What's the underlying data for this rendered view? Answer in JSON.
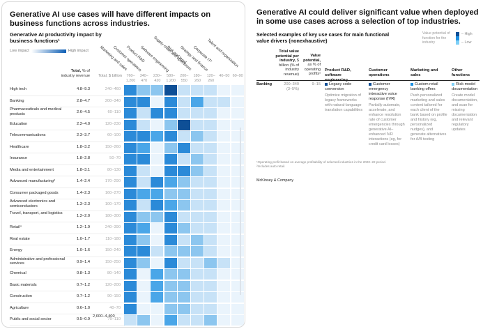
{
  "left": {
    "title": "Generative AI use cases will have different impacts on business functions across industries.",
    "subtitle": "Generative AI productivity impact by business functions¹",
    "legend": {
      "low": "Low impact",
      "high": "High impact",
      "low_color": "#ffffff",
      "high_color": "#0e5fb5"
    },
    "header": {
      "total_pct": "Total, % of industry revenue",
      "total_pct_bold": "Total,",
      "total_pct_rest": "% of industry revenue",
      "total_bn": "Total, $ billion"
    },
    "grand_total": "2,600–4,400"
  },
  "chart_data": {
    "type": "heatmap",
    "title": "Generative AI productivity impact by business functions¹",
    "xlabel": "Business function",
    "ylabel": "Industry",
    "scale": "0 = low impact … 5 = high impact (color intensity)",
    "legend": "top-left",
    "columns": [
      {
        "name": "Marketing and sales",
        "range": "760–1,200"
      },
      {
        "name": "Customer operations",
        "range": "340–470"
      },
      {
        "name": "Product R&D",
        "range": "230–420"
      },
      {
        "name": "Software engineering",
        "range": "580–1,200"
      },
      {
        "name": "Supply chain and operations",
        "range": "200–550"
      },
      {
        "name": "Risk and legal",
        "range": "180–260"
      },
      {
        "name": "Strategy and finance",
        "range": "120–260"
      },
      {
        "name": "Corporate IT²",
        "range": "40–50"
      },
      {
        "name": "Talent and organization",
        "range": "60–90"
      }
    ],
    "rows": [
      {
        "industry": "High tech",
        "pct": "4.8–9.3",
        "bn": "240–460",
        "values": [
          4,
          2,
          2,
          5,
          1,
          1,
          1,
          0,
          0
        ]
      },
      {
        "industry": "Banking",
        "pct": "2.8–4.7",
        "bn": "200–340",
        "values": [
          4,
          4,
          0,
          4,
          1,
          3,
          1,
          1,
          0
        ]
      },
      {
        "industry": "Pharmaceuticals and medical products",
        "pct": "2.6–4.5",
        "bn": "60–110",
        "values": [
          4,
          1,
          4,
          4,
          1,
          1,
          1,
          0,
          0
        ]
      },
      {
        "industry": "Education",
        "pct": "2.2–4.0",
        "bn": "120–230",
        "values": [
          4,
          1,
          0,
          2,
          5,
          1,
          1,
          0,
          0
        ]
      },
      {
        "industry": "Telecommunications",
        "pct": "2.3–3.7",
        "bn": "60–100",
        "values": [
          4,
          4,
          3,
          4,
          1,
          2,
          1,
          0,
          0
        ]
      },
      {
        "industry": "Healthcare",
        "pct": "1.8–3.2",
        "bn": "150–260",
        "values": [
          4,
          3,
          0,
          2,
          4,
          1,
          1,
          0,
          0
        ]
      },
      {
        "industry": "Insurance",
        "pct": "1.8–2.8",
        "bn": "50–70",
        "values": [
          4,
          4,
          0,
          4,
          1,
          2,
          1,
          0,
          0
        ]
      },
      {
        "industry": "Media and entertainment",
        "pct": "1.8–3.1",
        "bn": "80–130",
        "values": [
          4,
          1,
          0,
          4,
          4,
          2,
          1,
          0,
          0
        ]
      },
      {
        "industry": "Advanced manufacturing³",
        "pct": "1.4–2.4",
        "bn": "170–290",
        "values": [
          4,
          1,
          4,
          3,
          2,
          1,
          1,
          0,
          0
        ]
      },
      {
        "industry": "Consumer packaged goods",
        "pct": "1.4–2.3",
        "bn": "160–270",
        "values": [
          4,
          3,
          3,
          2,
          2,
          1,
          1,
          0,
          0
        ]
      },
      {
        "industry": "Advanced electronics and semiconductors",
        "pct": "1.3–2.3",
        "bn": "100–170",
        "values": [
          4,
          1,
          4,
          3,
          2,
          1,
          1,
          0,
          0
        ]
      },
      {
        "industry": "Travel, transport, and logistics",
        "pct": "1.2–2.0",
        "bn": "180–300",
        "values": [
          4,
          2,
          2,
          4,
          1,
          1,
          1,
          0,
          0
        ]
      },
      {
        "industry": "Retail⁴",
        "pct": "1.2–1.9",
        "bn": "240–390",
        "values": [
          4,
          3,
          0,
          4,
          2,
          1,
          1,
          0,
          0
        ]
      },
      {
        "industry": "Real estate",
        "pct": "1.0–1.7",
        "bn": "110–180",
        "values": [
          4,
          2,
          0,
          4,
          1,
          2,
          1,
          0,
          0
        ]
      },
      {
        "industry": "Energy",
        "pct": "1.0–1.6",
        "bn": "150–240",
        "values": [
          4,
          4,
          1,
          2,
          2,
          2,
          1,
          0,
          0
        ]
      },
      {
        "industry": "Administrative and professional services",
        "pct": "0.9–1.4",
        "bn": "150–250",
        "values": [
          4,
          2,
          0,
          4,
          1,
          1,
          2,
          1,
          0
        ]
      },
      {
        "industry": "Chemical",
        "pct": "0.8–1.3",
        "bn": "80–140",
        "values": [
          4,
          0,
          3,
          2,
          2,
          1,
          1,
          0,
          0
        ]
      },
      {
        "industry": "Basic materials",
        "pct": "0.7–1.2",
        "bn": "120–200",
        "values": [
          4,
          0,
          3,
          2,
          2,
          1,
          1,
          0,
          0
        ]
      },
      {
        "industry": "Construction",
        "pct": "0.7–1.2",
        "bn": "90–150",
        "values": [
          4,
          0,
          3,
          2,
          2,
          1,
          1,
          0,
          0
        ]
      },
      {
        "industry": "Agriculture",
        "pct": "0.6–1.0",
        "bn": "40–70",
        "values": [
          4,
          0,
          0,
          2,
          2,
          1,
          1,
          0,
          0
        ]
      },
      {
        "industry": "Public and social sector",
        "pct": "0.5–0.9",
        "bn": "70–110",
        "values": [
          1,
          2,
          0,
          3,
          1,
          1,
          2,
          0,
          0
        ]
      }
    ],
    "palette": [
      "#eaf4fc",
      "#c7e2f7",
      "#8cc6ef",
      "#4aa6e8",
      "#2b8ad8",
      "#0e4f96"
    ]
  },
  "right": {
    "title": "Generative AI could deliver significant value when deployed in some use cases across a selection of top industries.",
    "subtitle": "Selected examples of key use cases for main functional value drivers (nonexhaustive)",
    "legend": {
      "text": "Value potential of function for the industry",
      "high": "– High",
      "low": "– Low",
      "colors": [
        "#0e4f96",
        "#1d8fe0",
        "#7fd0f7"
      ]
    },
    "columns": {
      "total_value_bold": "Total value potential per industry,",
      "total_value_rest": "$ billion (% of industry revenue)",
      "value_potential_bold": "Value potential,",
      "value_potential_rest": "as % of operating profits¹",
      "functions": [
        "Product R&D, software engineering",
        "Customer operations",
        "Marketing and sales",
        "Other functions"
      ]
    },
    "row": {
      "industry": "Banking",
      "total_value": "200–340 (3–5%)",
      "value_potential": "9–15",
      "use_cases": [
        {
          "title": "Legacy code conversion",
          "desc": "Optimize migration of legacy frameworks with natural-language translation capabilities",
          "level": "high"
        },
        {
          "title": "Customer emergency interactive voice response (IVR)",
          "desc": "Partially automate, accelerate, and enhance resolution rate of customer emergencies through generative AI–enhanced IVR interactions (eg, for credit card losses)",
          "level": "high"
        },
        {
          "title": "Custom retail banking offers",
          "desc": "Push personalized marketing and sales content tailored for each client of the bank based on profile and history (eg, personalized nudges), and generate alternatives for A/B testing",
          "level": "mid"
        },
        {
          "title": "Risk model documentation",
          "desc": "Create model documentation, and scan for missing documentation and relevant regulatory updates",
          "level": "low"
        }
      ]
    },
    "footnotes": [
      "¹Operating profit based on average profitability of selected industries in the 2020–22 period.",
      "²Includes auto retail."
    ],
    "brand": "McKinsey & Company"
  }
}
